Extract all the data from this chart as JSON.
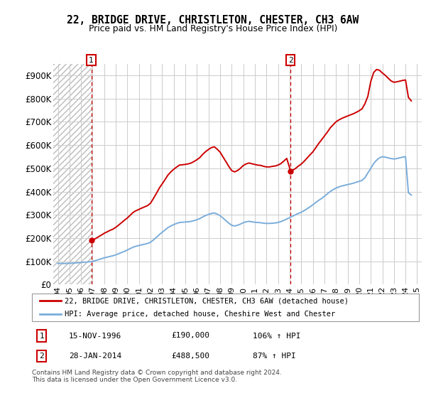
{
  "title": "22, BRIDGE DRIVE, CHRISTLETON, CHESTER, CH3 6AW",
  "subtitle": "Price paid vs. HM Land Registry's House Price Index (HPI)",
  "ylim": [
    0,
    950000
  ],
  "yticks": [
    0,
    100000,
    200000,
    300000,
    400000,
    500000,
    600000,
    700000,
    800000,
    900000
  ],
  "ytick_labels": [
    "£0",
    "£100K",
    "£200K",
    "£300K",
    "£400K",
    "£500K",
    "£600K",
    "£700K",
    "£800K",
    "£900K"
  ],
  "xlim_left": 1993.6,
  "xlim_right": 2025.4,
  "hatch_end": 1996.88,
  "sale1_x": 1996.88,
  "sale1_y": 190000,
  "sale2_x": 2014.08,
  "sale2_y": 488500,
  "hpi_color": "#7aaddb",
  "price_color": "#cc0000",
  "grid_color": "#cccccc",
  "legend_label_price": "22, BRIDGE DRIVE, CHRISTLETON, CHESTER, CH3 6AW (detached house)",
  "legend_label_hpi": "HPI: Average price, detached house, Cheshire West and Chester",
  "footnote": "Contains HM Land Registry data © Crown copyright and database right 2024.\nThis data is licensed under the Open Government Licence v3.0.",
  "hpi_data_x": [
    1994.0,
    1994.25,
    1994.5,
    1994.75,
    1995.0,
    1995.25,
    1995.5,
    1995.75,
    1996.0,
    1996.25,
    1996.5,
    1996.75,
    1997.0,
    1997.25,
    1997.5,
    1997.75,
    1998.0,
    1998.25,
    1998.5,
    1998.75,
    1999.0,
    1999.25,
    1999.5,
    1999.75,
    2000.0,
    2000.25,
    2000.5,
    2000.75,
    2001.0,
    2001.25,
    2001.5,
    2001.75,
    2002.0,
    2002.25,
    2002.5,
    2002.75,
    2003.0,
    2003.25,
    2003.5,
    2003.75,
    2004.0,
    2004.25,
    2004.5,
    2004.75,
    2005.0,
    2005.25,
    2005.5,
    2005.75,
    2006.0,
    2006.25,
    2006.5,
    2006.75,
    2007.0,
    2007.25,
    2007.5,
    2007.75,
    2008.0,
    2008.25,
    2008.5,
    2008.75,
    2009.0,
    2009.25,
    2009.5,
    2009.75,
    2010.0,
    2010.25,
    2010.5,
    2010.75,
    2011.0,
    2011.25,
    2011.5,
    2011.75,
    2012.0,
    2012.25,
    2012.5,
    2012.75,
    2013.0,
    2013.25,
    2013.5,
    2013.75,
    2014.0,
    2014.25,
    2014.5,
    2014.75,
    2015.0,
    2015.25,
    2015.5,
    2015.75,
    2016.0,
    2016.25,
    2016.5,
    2016.75,
    2017.0,
    2017.25,
    2017.5,
    2017.75,
    2018.0,
    2018.25,
    2018.5,
    2018.75,
    2019.0,
    2019.25,
    2019.5,
    2019.75,
    2020.0,
    2020.25,
    2020.5,
    2020.75,
    2021.0,
    2021.25,
    2021.5,
    2021.75,
    2022.0,
    2022.25,
    2022.5,
    2022.75,
    2023.0,
    2023.25,
    2023.5,
    2023.75,
    2024.0,
    2024.25,
    2024.5
  ],
  "hpi_data_y": [
    91000,
    91000,
    90500,
    91000,
    91500,
    92000,
    93000,
    94000,
    95000,
    96000,
    97000,
    98000,
    100000,
    103000,
    107000,
    111000,
    115000,
    118000,
    121000,
    124000,
    128000,
    133000,
    138000,
    143000,
    149000,
    155000,
    161000,
    165000,
    168000,
    171000,
    174000,
    177000,
    182000,
    192000,
    203000,
    215000,
    225000,
    235000,
    245000,
    252000,
    258000,
    263000,
    267000,
    268000,
    269000,
    270000,
    272000,
    275000,
    279000,
    284000,
    291000,
    297000,
    302000,
    306000,
    308000,
    303000,
    296000,
    286000,
    275000,
    264000,
    255000,
    252000,
    255000,
    260000,
    266000,
    270000,
    272000,
    270000,
    268000,
    267000,
    266000,
    264000,
    263000,
    263000,
    264000,
    265000,
    267000,
    271000,
    276000,
    282000,
    288000,
    294000,
    300000,
    306000,
    311000,
    318000,
    326000,
    334000,
    343000,
    353000,
    362000,
    370000,
    380000,
    390000,
    400000,
    408000,
    415000,
    420000,
    424000,
    427000,
    430000,
    433000,
    436000,
    440000,
    444000,
    448000,
    460000,
    480000,
    500000,
    520000,
    535000,
    545000,
    550000,
    548000,
    545000,
    542000,
    540000,
    542000,
    545000,
    548000,
    550000,
    395000,
    385000
  ],
  "red_seg1_x": [
    1996.88,
    1997.0,
    1997.25,
    1997.5,
    1997.75,
    1998.0,
    1998.25,
    1998.5,
    1998.75,
    1999.0,
    1999.25,
    1999.5,
    1999.75,
    2000.0,
    2000.25,
    2000.5,
    2000.75,
    2001.0,
    2001.25,
    2001.5,
    2001.75,
    2002.0,
    2002.25,
    2002.5,
    2002.75,
    2003.0,
    2003.25,
    2003.5,
    2003.75,
    2004.0,
    2004.25,
    2004.5,
    2004.75,
    2005.0,
    2005.25,
    2005.5,
    2005.75,
    2006.0,
    2006.25,
    2006.5,
    2006.75,
    2007.0,
    2007.25,
    2007.5,
    2007.75,
    2008.0,
    2008.25,
    2008.5,
    2008.75,
    2009.0,
    2009.25,
    2009.5,
    2009.75,
    2010.0,
    2010.25,
    2010.5,
    2010.75,
    2011.0,
    2011.25,
    2011.5,
    2011.75,
    2012.0,
    2012.25,
    2012.5,
    2012.75,
    2013.0,
    2013.25,
    2013.5,
    2013.75,
    2014.08
  ],
  "red_seg1_y": [
    190000,
    191923,
    197885,
    205385,
    212885,
    220577,
    226731,
    233077,
    238269,
    246346,
    256154,
    266538,
    277115,
    286731,
    298654,
    310769,
    317885,
    323462,
    329231,
    334615,
    340000,
    350192,
    370769,
    391923,
    414808,
    432885,
    451731,
    471154,
    484808,
    495962,
    505577,
    514231,
    515192,
    516923,
    519038,
    522885,
    529423,
    537115,
    546154,
    560192,
    571923,
    581154,
    589038,
    592692,
    582115,
    569615,
    549038,
    528846,
    508077,
    490192,
    484615,
    490192,
    500192,
    512115,
    519038,
    522885,
    519615,
    516538,
    513654,
    512692,
    508654,
    505962,
    505962,
    508269,
    510000,
    513846,
    520577,
    531346,
    542500,
    488500
  ],
  "red_seg2_x": [
    2014.08,
    2014.25,
    2014.5,
    2014.75,
    2015.0,
    2015.25,
    2015.5,
    2015.75,
    2016.0,
    2016.25,
    2016.5,
    2016.75,
    2017.0,
    2017.25,
    2017.5,
    2017.75,
    2018.0,
    2018.25,
    2018.5,
    2018.75,
    2019.0,
    2019.25,
    2019.5,
    2019.75,
    2020.0,
    2020.25,
    2020.5,
    2020.75,
    2021.0,
    2021.25,
    2021.5,
    2021.75,
    2022.0,
    2022.25,
    2022.5,
    2022.75,
    2023.0,
    2023.25,
    2023.5,
    2023.75,
    2024.0,
    2024.25,
    2024.5
  ],
  "red_seg2_y": [
    488500,
    491615,
    499115,
    509481,
    518019,
    530096,
    543942,
    557692,
    570673,
    587981,
    606346,
    622308,
    639000,
    655308,
    673654,
    687077,
    699981,
    708154,
    714654,
    719923,
    724962,
    729885,
    734692,
    740731,
    747654,
    756000,
    778000,
    810000,
    873000,
    912000,
    925000,
    922000,
    910000,
    900000,
    888000,
    876000,
    870000,
    872000,
    875000,
    878000,
    880000,
    805000,
    790000
  ]
}
